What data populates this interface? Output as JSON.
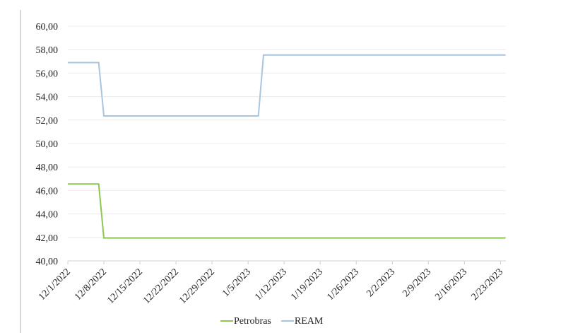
{
  "chart_data": {
    "type": "line",
    "title": "",
    "xlabel": "",
    "ylabel": "",
    "ylim": [
      40,
      60
    ],
    "yticks": [
      "40,00",
      "42,00",
      "44,00",
      "46,00",
      "48,00",
      "50,00",
      "52,00",
      "54,00",
      "56,00",
      "58,00",
      "60,00"
    ],
    "x_tick_labels": [
      "12/1/2022",
      "12/8/2022",
      "12/15/2022",
      "12/22/2022",
      "12/29/2022",
      "1/5/2023",
      "1/12/2023",
      "1/19/2023",
      "1/26/2023",
      "2/2/2023",
      "2/9/2023",
      "2/16/2023",
      "2/23/2023"
    ],
    "x_range": [
      "2022-12-01",
      "2023-02-24"
    ],
    "grid": "horizontal",
    "legend_position": "bottom",
    "series": [
      {
        "name": "Petrobras",
        "color": "#8cc751",
        "points": [
          [
            "2022-12-01",
            46.55
          ],
          [
            "2022-12-07",
            46.55
          ],
          [
            "2022-12-08",
            41.95
          ],
          [
            "2023-02-24",
            41.95
          ]
        ]
      },
      {
        "name": "REAM",
        "color": "#a9c5e0",
        "points": [
          [
            "2022-12-01",
            56.9
          ],
          [
            "2022-12-07",
            56.9
          ],
          [
            "2022-12-08",
            52.35
          ],
          [
            "2023-01-07",
            52.35
          ],
          [
            "2023-01-08",
            57.55
          ],
          [
            "2023-02-24",
            57.55
          ]
        ]
      }
    ]
  }
}
